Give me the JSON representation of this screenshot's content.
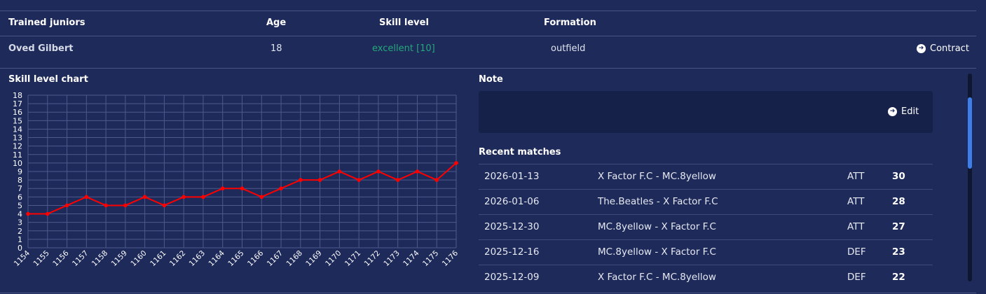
{
  "table": {
    "headers": {
      "name": "Trained juniors",
      "age": "Age",
      "skill": "Skill level",
      "formation": "Formation"
    },
    "row": {
      "name": "Oved Gilbert",
      "age": "18",
      "skill": "excellent [10]",
      "formation": "outfield",
      "action_label": "Contract"
    }
  },
  "chart_section": {
    "title": "Skill level chart"
  },
  "note_section": {
    "title": "Note",
    "edit_label": "Edit"
  },
  "matches_section": {
    "title": "Recent matches",
    "rows": [
      {
        "date": "2026-01-13",
        "teams": "X Factor F.C - MC.8yellow",
        "position": "ATT",
        "score": "30"
      },
      {
        "date": "2026-01-06",
        "teams": "The.Beatles - X Factor F.C",
        "position": "ATT",
        "score": "28"
      },
      {
        "date": "2025-12-30",
        "teams": "MC.8yellow - X Factor F.C",
        "position": "ATT",
        "score": "27"
      },
      {
        "date": "2025-12-16",
        "teams": "MC.8yellow - X Factor F.C",
        "position": "DEF",
        "score": "23"
      },
      {
        "date": "2025-12-09",
        "teams": "X Factor F.C - MC.8yellow",
        "position": "DEF",
        "score": "22"
      }
    ]
  },
  "colors": {
    "background": "#1e2a5a",
    "skill_text": "#25a87a",
    "line": "#ff0000",
    "note_box": "#16214a",
    "scroll_thumb": "#3d7ee8"
  },
  "icons": {
    "action": "arrow-circle-right-icon"
  },
  "chart_data": {
    "type": "line",
    "x": [
      "1154",
      "1155",
      "1156",
      "1157",
      "1158",
      "1159",
      "1160",
      "1161",
      "1162",
      "1163",
      "1164",
      "1165",
      "1166",
      "1167",
      "1168",
      "1169",
      "1170",
      "1171",
      "1172",
      "1173",
      "1174",
      "1175",
      "1176"
    ],
    "series": [
      {
        "values": [
          4,
          4,
          5,
          6,
          5,
          5,
          6,
          5,
          6,
          6,
          7,
          7,
          6,
          7,
          8,
          8,
          9,
          8,
          9,
          8,
          9,
          8,
          10
        ]
      }
    ],
    "ylim": [
      0,
      18
    ],
    "yticks": [
      0,
      1,
      2,
      3,
      4,
      5,
      6,
      7,
      8,
      9,
      10,
      11,
      12,
      13,
      14,
      15,
      16,
      17,
      18
    ],
    "grid": true,
    "legend": "none"
  }
}
